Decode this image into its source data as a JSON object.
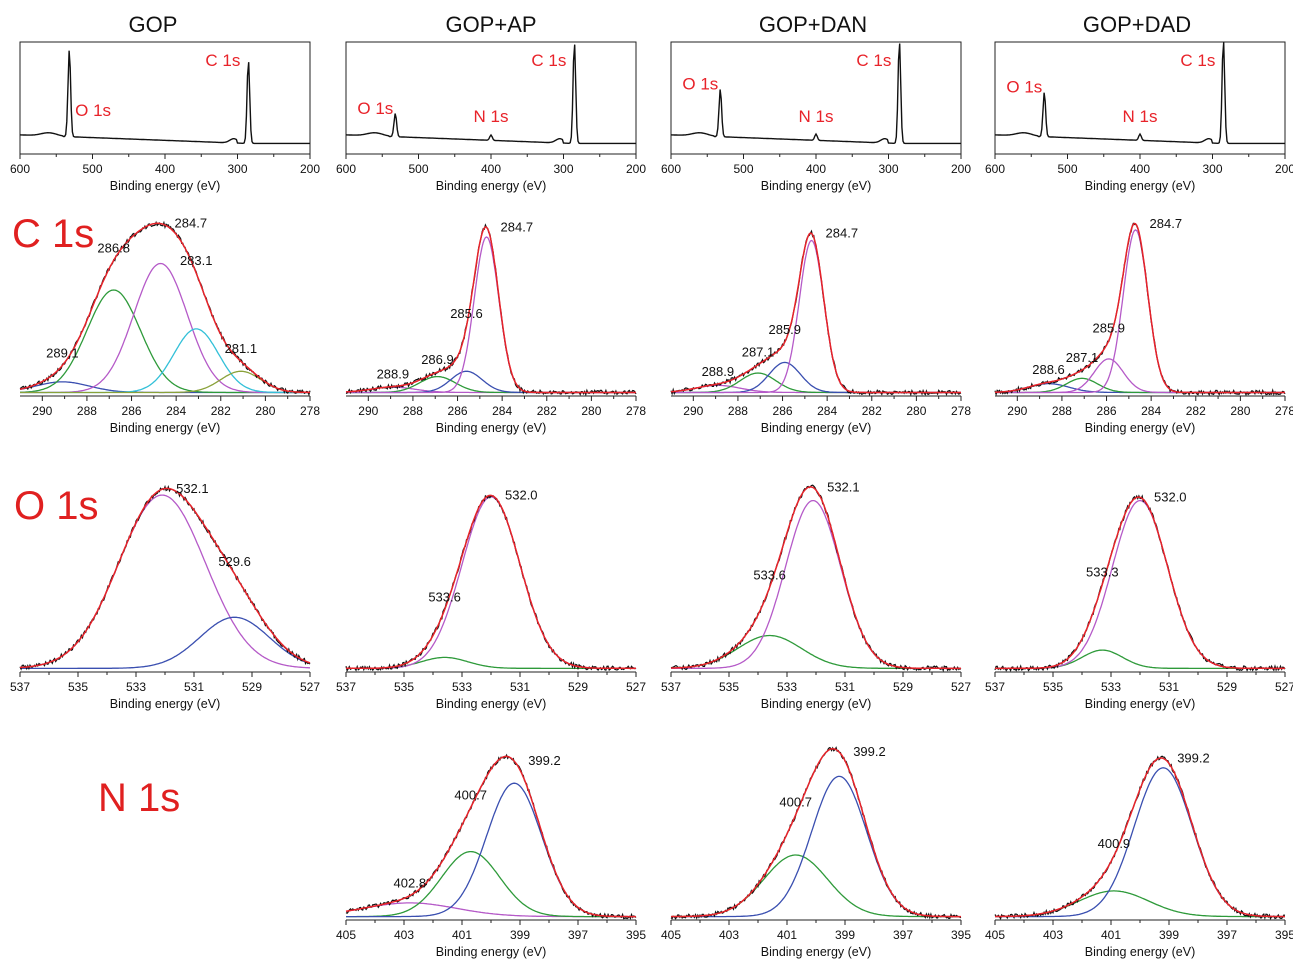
{
  "columns": [
    "GOP",
    "GOP+AP",
    "GOP+DAN",
    "GOP+DAD"
  ],
  "row_labels": [
    "C 1s",
    "O 1s",
    "N 1s"
  ],
  "colors": {
    "raw": "#111111",
    "envelope": "#e8232a",
    "blue": "#3a4fb0",
    "green": "#2e9a3a",
    "magenta": "#b55ac8",
    "cyan": "#33c0d8",
    "olive": "#8aa23a",
    "peak_label": "#e8232a"
  },
  "chart_data": [
    {
      "panel": "survey",
      "column": "GOP",
      "type": "line",
      "xlabel": "Binding energy (eV)",
      "xlim": [
        600,
        200
      ],
      "x_reversed": true,
      "xticks": [
        600,
        500,
        400,
        300,
        200
      ],
      "annotations": [
        {
          "text": "O 1s",
          "x": 535
        },
        {
          "text": "C 1s",
          "x": 285
        }
      ],
      "series": [
        {
          "peaks": [
            {
              "x": 532,
              "h": 0.82
            },
            {
              "x": 285,
              "h": 0.78
            }
          ],
          "base": 0.1
        }
      ]
    },
    {
      "panel": "survey",
      "column": "GOP+AP",
      "type": "line",
      "xlabel": "Binding energy (eV)",
      "xlim": [
        600,
        200
      ],
      "x_reversed": true,
      "xticks": [
        600,
        500,
        400,
        300,
        200
      ],
      "annotations": [
        {
          "text": "O 1s",
          "x": 532
        },
        {
          "text": "N 1s",
          "x": 400
        },
        {
          "text": "C 1s",
          "x": 285
        }
      ],
      "series": [
        {
          "peaks": [
            {
              "x": 532,
              "h": 0.22
            },
            {
              "x": 400,
              "h": 0.05
            },
            {
              "x": 285,
              "h": 0.95
            }
          ],
          "base": 0.1
        }
      ]
    },
    {
      "panel": "survey",
      "column": "GOP+DAN",
      "type": "line",
      "xlabel": "Binding energy (eV)",
      "xlim": [
        600,
        200
      ],
      "x_reversed": true,
      "xticks": [
        600,
        500,
        400,
        300,
        200
      ],
      "annotations": [
        {
          "text": "O 1s",
          "x": 532
        },
        {
          "text": "N 1s",
          "x": 400
        },
        {
          "text": "C 1s",
          "x": 285
        }
      ],
      "series": [
        {
          "peaks": [
            {
              "x": 532,
              "h": 0.45
            },
            {
              "x": 400,
              "h": 0.06
            },
            {
              "x": 285,
              "h": 0.96
            }
          ],
          "base": 0.1
        }
      ]
    },
    {
      "panel": "survey",
      "column": "GOP+DAD",
      "type": "line",
      "xlabel": "Binding energy (eV)",
      "xlim": [
        600,
        200
      ],
      "x_reversed": true,
      "xticks": [
        600,
        500,
        400,
        300,
        200
      ],
      "annotations": [
        {
          "text": "O 1s",
          "x": 532
        },
        {
          "text": "N 1s",
          "x": 400
        },
        {
          "text": "C 1s",
          "x": 285
        }
      ],
      "series": [
        {
          "peaks": [
            {
              "x": 532,
              "h": 0.42
            },
            {
              "x": 400,
              "h": 0.06
            },
            {
              "x": 285,
              "h": 0.97
            }
          ],
          "base": 0.1
        }
      ]
    },
    {
      "panel": "C 1s",
      "column": "GOP",
      "type": "line",
      "xlabel": "Binding energy (eV)",
      "xlim": [
        291,
        278
      ],
      "x_reversed": true,
      "xticks": [
        290,
        288,
        286,
        284,
        282,
        280,
        278
      ],
      "components": [
        {
          "name": "289.1",
          "center": 289.1,
          "height": 0.06,
          "width": 1.2,
          "color": "blue"
        },
        {
          "name": "286.8",
          "center": 286.8,
          "height": 0.58,
          "width": 1.2,
          "color": "green"
        },
        {
          "name": "284.7",
          "center": 284.7,
          "height": 0.73,
          "width": 1.2,
          "color": "magenta"
        },
        {
          "name": "283.1",
          "center": 283.1,
          "height": 0.36,
          "width": 1.0,
          "color": "cyan"
        },
        {
          "name": "281.1",
          "center": 281.1,
          "height": 0.12,
          "width": 0.9,
          "color": "olive"
        }
      ]
    },
    {
      "panel": "C 1s",
      "column": "GOP+AP",
      "type": "line",
      "xlabel": "Binding energy (eV)",
      "xlim": [
        291,
        278
      ],
      "x_reversed": true,
      "xticks": [
        290,
        288,
        286,
        284,
        282,
        280,
        278
      ],
      "components": [
        {
          "name": "288.9",
          "center": 288.9,
          "height": 0.03,
          "width": 1.0,
          "color": "magenta"
        },
        {
          "name": "286.9",
          "center": 286.9,
          "height": 0.09,
          "width": 0.8,
          "color": "green"
        },
        {
          "name": "285.6",
          "center": 285.6,
          "height": 0.12,
          "width": 0.7,
          "color": "blue"
        },
        {
          "name": "284.7",
          "center": 284.7,
          "height": 0.88,
          "width": 0.55,
          "color": "magenta"
        }
      ]
    },
    {
      "panel": "C 1s",
      "column": "GOP+DAN",
      "type": "line",
      "xlabel": "Binding energy (eV)",
      "xlim": [
        291,
        278
      ],
      "x_reversed": true,
      "xticks": [
        290,
        288,
        286,
        284,
        282,
        280,
        278
      ],
      "components": [
        {
          "name": "288.9",
          "center": 288.9,
          "height": 0.04,
          "width": 1.0,
          "color": "magenta"
        },
        {
          "name": "287.1",
          "center": 287.1,
          "height": 0.11,
          "width": 0.8,
          "color": "green"
        },
        {
          "name": "285.9",
          "center": 285.9,
          "height": 0.17,
          "width": 0.7,
          "color": "blue"
        },
        {
          "name": "284.7",
          "center": 284.7,
          "height": 0.86,
          "width": 0.55,
          "color": "magenta"
        }
      ]
    },
    {
      "panel": "C 1s",
      "column": "GOP+DAD",
      "type": "line",
      "xlabel": "Binding energy (eV)",
      "xlim": [
        291,
        278
      ],
      "x_reversed": true,
      "xticks": [
        290,
        288,
        286,
        284,
        282,
        280,
        278
      ],
      "components": [
        {
          "name": "288.6",
          "center": 288.6,
          "height": 0.05,
          "width": 0.9,
          "color": "blue"
        },
        {
          "name": "287.1",
          "center": 287.1,
          "height": 0.08,
          "width": 0.7,
          "color": "green"
        },
        {
          "name": "285.9",
          "center": 285.9,
          "height": 0.19,
          "width": 0.65,
          "color": "magenta"
        },
        {
          "name": "284.7",
          "center": 284.7,
          "height": 0.92,
          "width": 0.55,
          "color": "magenta"
        }
      ]
    },
    {
      "panel": "O 1s",
      "column": "GOP",
      "type": "line",
      "xlabel": "Binding energy (eV)",
      "xlim": [
        537,
        527
      ],
      "x_reversed": true,
      "xticks": [
        537,
        535,
        533,
        531,
        529,
        527
      ],
      "components": [
        {
          "name": "532.1",
          "center": 532.1,
          "height": 0.95,
          "width": 1.5,
          "color": "magenta"
        },
        {
          "name": "529.6",
          "center": 529.6,
          "height": 0.28,
          "width": 1.2,
          "color": "blue"
        }
      ]
    },
    {
      "panel": "O 1s",
      "column": "GOP+AP",
      "type": "line",
      "xlabel": "Binding energy (eV)",
      "xlim": [
        537,
        527
      ],
      "x_reversed": true,
      "xticks": [
        537,
        535,
        533,
        531,
        529,
        527
      ],
      "components": [
        {
          "name": "533.6",
          "center": 533.6,
          "height": 0.06,
          "width": 0.8,
          "color": "green"
        },
        {
          "name": "532.0",
          "center": 532.0,
          "height": 0.94,
          "width": 1.0,
          "color": "magenta"
        }
      ]
    },
    {
      "panel": "O 1s",
      "column": "GOP+DAN",
      "type": "line",
      "xlabel": "Binding energy (eV)",
      "xlim": [
        537,
        527
      ],
      "x_reversed": true,
      "xticks": [
        537,
        535,
        533,
        531,
        529,
        527
      ],
      "components": [
        {
          "name": "533.6",
          "center": 533.6,
          "height": 0.18,
          "width": 1.1,
          "color": "green"
        },
        {
          "name": "532.1",
          "center": 532.1,
          "height": 0.92,
          "width": 0.95,
          "color": "magenta"
        }
      ]
    },
    {
      "panel": "O 1s",
      "column": "GOP+DAD",
      "type": "line",
      "xlabel": "Binding energy (eV)",
      "xlim": [
        537,
        527
      ],
      "x_reversed": true,
      "xticks": [
        537,
        535,
        533,
        531,
        529,
        527
      ],
      "components": [
        {
          "name": "533.3",
          "center": 533.3,
          "height": 0.1,
          "width": 0.7,
          "color": "green"
        },
        {
          "name": "532.0",
          "center": 532.0,
          "height": 0.92,
          "width": 0.95,
          "color": "magenta"
        }
      ]
    },
    {
      "panel": "N 1s",
      "column": "GOP+AP",
      "type": "line",
      "xlabel": "Binding energy (eV)",
      "xlim": [
        405,
        395
      ],
      "x_reversed": true,
      "xticks": [
        405,
        403,
        401,
        399,
        397,
        395
      ],
      "components": [
        {
          "name": "402.8",
          "center": 402.8,
          "height": 0.08,
          "width": 1.6,
          "color": "magenta"
        },
        {
          "name": "400.7",
          "center": 400.7,
          "height": 0.38,
          "width": 1.0,
          "color": "green"
        },
        {
          "name": "399.2",
          "center": 399.2,
          "height": 0.78,
          "width": 0.95,
          "color": "blue"
        }
      ]
    },
    {
      "panel": "N 1s",
      "column": "GOP+DAN",
      "type": "line",
      "xlabel": "Binding energy (eV)",
      "xlim": [
        405,
        395
      ],
      "x_reversed": true,
      "xticks": [
        405,
        403,
        401,
        399,
        397,
        395
      ],
      "components": [
        {
          "name": "400.7",
          "center": 400.7,
          "height": 0.36,
          "width": 1.1,
          "color": "green"
        },
        {
          "name": "399.2",
          "center": 399.2,
          "height": 0.82,
          "width": 0.95,
          "color": "blue"
        }
      ]
    },
    {
      "panel": "N 1s",
      "column": "GOP+DAD",
      "type": "line",
      "xlabel": "Binding energy (eV)",
      "xlim": [
        405,
        395
      ],
      "x_reversed": true,
      "xticks": [
        405,
        403,
        401,
        399,
        397,
        395
      ],
      "components": [
        {
          "name": "400.9",
          "center": 400.9,
          "height": 0.15,
          "width": 1.2,
          "color": "green"
        },
        {
          "name": "399.2",
          "center": 399.2,
          "height": 0.87,
          "width": 1.0,
          "color": "blue"
        }
      ]
    }
  ]
}
